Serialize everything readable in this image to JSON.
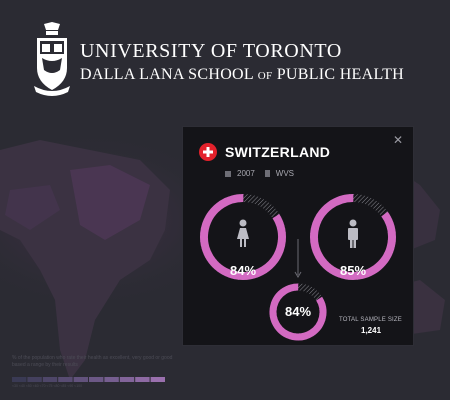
{
  "header": {
    "university": "UNIVERSITY OF TORONTO",
    "school_part1": "DALLA LANA SCHOOL",
    "school_of": "OF",
    "school_part2": "PUBLIC HEALTH"
  },
  "panel": {
    "close_icon": "✕",
    "country": "SWITZERLAND",
    "year": "2007",
    "survey": "WVS",
    "female_pct": "84%",
    "male_pct": "85%",
    "total_pct": "84%",
    "total_sample_label": "TOTAL SAMPLE SIZE",
    "total_sample_value": "1,241",
    "female_level": 0.84,
    "male_level": 0.85,
    "total_level": 0.84
  },
  "legend": {
    "text": "% of the population who rate their health as excellent, very good or good based a range by their results",
    "ticks": "<30  <40  <50  <60  <70  <75  <80  <85  <90  <100",
    "colors": [
      "#3a3a54",
      "#44405e",
      "#4e4668",
      "#584c72",
      "#62527c",
      "#6c5886",
      "#765e90",
      "#82649a",
      "#8e6aa4",
      "#9a70ae"
    ]
  },
  "colors": {
    "accent": "#d36ac2",
    "flag": "#e3212b"
  }
}
